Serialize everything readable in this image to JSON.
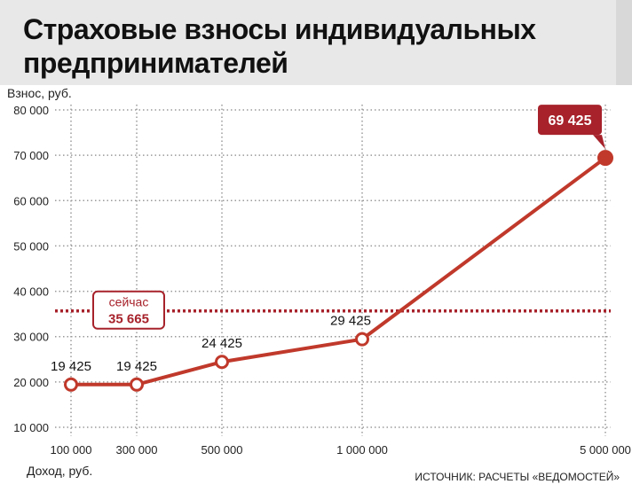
{
  "title": "Страховые взносы индивидуальных предпринимателей",
  "source": "ИСТОЧНИК: РАСЧЕТЫ «ВЕДОМОСТЕЙ»",
  "colors": {
    "line": "#c0392b",
    "marker_fill": "#ffffff",
    "highlight_box": "#a7222b",
    "current_line": "#a7222b",
    "grid": "#9a9a9a",
    "header_bg": "#e8e8e8"
  },
  "chart_data": {
    "type": "line",
    "title": "Страховые взносы индивидуальных предпринимателей",
    "xlabel": "Доход, руб.",
    "ylabel": "Взнос, руб.",
    "categories": [
      "100 000",
      "300 000",
      "500 000",
      "1 000 000",
      "5 000 000"
    ],
    "x": [
      100000,
      300000,
      500000,
      1000000,
      5000000
    ],
    "x_scale": "non-uniform categorical",
    "series": [
      {
        "values": [
          19425,
          19425,
          24425,
          29425,
          69425
        ],
        "data_labels": [
          "19 425",
          "19 425",
          "24 425",
          "29 425",
          "69 425"
        ]
      }
    ],
    "reference_line": {
      "label": "сейчас",
      "value": 35665,
      "value_label": "35 665"
    },
    "ylim": [
      10000,
      80000
    ],
    "yticks": [
      10000,
      20000,
      30000,
      40000,
      50000,
      60000,
      70000,
      80000
    ],
    "ytick_labels": [
      "10 000",
      "20 000",
      "30 000",
      "40 000",
      "50 000",
      "60 000",
      "70 000",
      "80 000"
    ],
    "grid": true,
    "legend": "none"
  }
}
